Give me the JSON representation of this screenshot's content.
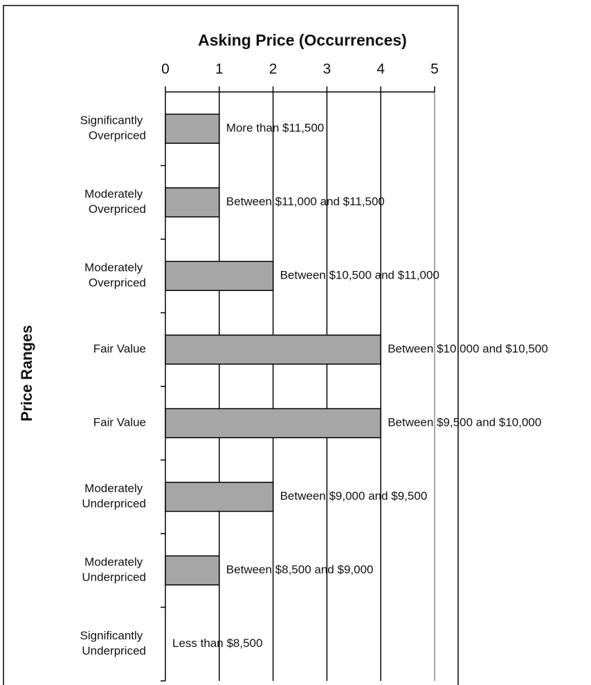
{
  "chart_data": {
    "type": "bar",
    "orientation": "horizontal",
    "title": "Asking Price (Occurrences)",
    "y_label": "Price Ranges",
    "categories": [
      "Significantly Overpriced",
      "Moderately Overpriced",
      "Moderately Overpriced",
      "Fair Value",
      "Fair Value",
      "Moderately Underpriced",
      "Moderately Underpriced",
      "Significantly Underpriced"
    ],
    "values": [
      1,
      1,
      2,
      4,
      4,
      2,
      1,
      0
    ],
    "annotations": [
      "More than $11,500",
      "Between $11,000 and $11,500",
      "Between $10,500 and $11,000",
      "Between $10,000 and $10,500",
      "Between $9,500 and $10,000",
      "Between $9,000 and $9,500",
      "Between $8,500 and $9,000",
      "Less than $8,500"
    ],
    "color": "#a6a6a6",
    "xlim": [
      0,
      5
    ],
    "xticks": [
      0,
      1,
      2,
      3,
      4,
      5
    ],
    "grid": true
  }
}
